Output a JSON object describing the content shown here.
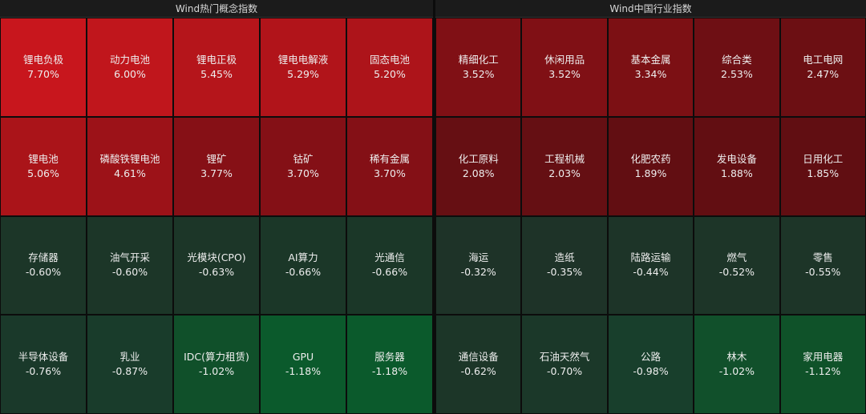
{
  "panels": [
    {
      "title": "Wind热门概念指数",
      "cells": [
        {
          "name": "锂电负极",
          "change": "7.70%",
          "color": "#c8161d"
        },
        {
          "name": "动力电池",
          "change": "6.00%",
          "color": "#c0161c"
        },
        {
          "name": "锂电正极",
          "change": "5.45%",
          "color": "#b5151b"
        },
        {
          "name": "锂电电解液",
          "change": "5.29%",
          "color": "#b1141a"
        },
        {
          "name": "固态电池",
          "change": "5.20%",
          "color": "#ad141a"
        },
        {
          "name": "锂电池",
          "change": "5.06%",
          "color": "#aa1419"
        },
        {
          "name": "磷酸铁锂电池",
          "change": "4.61%",
          "color": "#9c1218"
        },
        {
          "name": "锂矿",
          "change": "3.77%",
          "color": "#861016"
        },
        {
          "name": "钴矿",
          "change": "3.70%",
          "color": "#841016"
        },
        {
          "name": "稀有金属",
          "change": "3.70%",
          "color": "#841016"
        },
        {
          "name": "存储器",
          "change": "-0.60%",
          "color": "#1c3628"
        },
        {
          "name": "油气开采",
          "change": "-0.60%",
          "color": "#1c3628"
        },
        {
          "name": "光模块(CPO)",
          "change": "-0.63%",
          "color": "#1c3628"
        },
        {
          "name": "AI算力",
          "change": "-0.66%",
          "color": "#1b3728"
        },
        {
          "name": "光通信",
          "change": "-0.66%",
          "color": "#1b3728"
        },
        {
          "name": "半导体设备",
          "change": "-0.76%",
          "color": "#1a392a"
        },
        {
          "name": "乳业",
          "change": "-0.87%",
          "color": "#193c2b"
        },
        {
          "name": "IDC(算力租赁)",
          "change": "-1.02%",
          "color": "#10502a"
        },
        {
          "name": "GPU",
          "change": "-1.18%",
          "color": "#0b5a2c"
        },
        {
          "name": "服务器",
          "change": "-1.18%",
          "color": "#0b5a2c"
        }
      ]
    },
    {
      "title": "Wind中国行业指数",
      "cells": [
        {
          "name": "精细化工",
          "change": "3.52%",
          "color": "#801015"
        },
        {
          "name": "休闲用品",
          "change": "3.52%",
          "color": "#801015"
        },
        {
          "name": "基本金属",
          "change": "3.34%",
          "color": "#7c1014"
        },
        {
          "name": "综合类",
          "change": "2.53%",
          "color": "#6e0f14"
        },
        {
          "name": "电工电网",
          "change": "2.47%",
          "color": "#6c0f13"
        },
        {
          "name": "化工原料",
          "change": "2.08%",
          "color": "#660f13"
        },
        {
          "name": "工程机械",
          "change": "2.03%",
          "color": "#650f13"
        },
        {
          "name": "化肥农药",
          "change": "1.89%",
          "color": "#620e12"
        },
        {
          "name": "发电设备",
          "change": "1.88%",
          "color": "#620e12"
        },
        {
          "name": "日用化工",
          "change": "1.85%",
          "color": "#610e12"
        },
        {
          "name": "海运",
          "change": "-0.32%",
          "color": "#1e3328"
        },
        {
          "name": "造纸",
          "change": "-0.35%",
          "color": "#1e3328"
        },
        {
          "name": "陆路运输",
          "change": "-0.44%",
          "color": "#1d3428"
        },
        {
          "name": "燃气",
          "change": "-0.52%",
          "color": "#1d3528"
        },
        {
          "name": "零售",
          "change": "-0.55%",
          "color": "#1d3528"
        },
        {
          "name": "通信设备",
          "change": "-0.62%",
          "color": "#1c3628"
        },
        {
          "name": "石油天然气",
          "change": "-0.70%",
          "color": "#1b3829"
        },
        {
          "name": "公路",
          "change": "-0.98%",
          "color": "#183f2c"
        },
        {
          "name": "林木",
          "change": "-1.02%",
          "color": "#11502b"
        },
        {
          "name": "家用电器",
          "change": "-1.12%",
          "color": "#0f5229"
        }
      ]
    }
  ]
}
